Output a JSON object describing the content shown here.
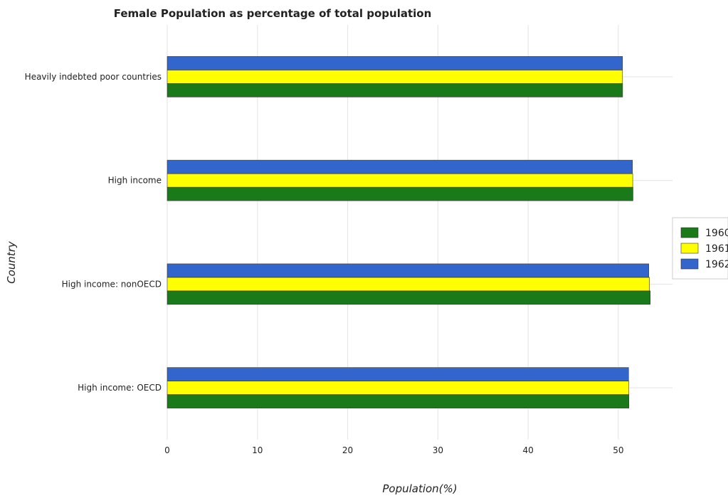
{
  "chart_data": {
    "type": "bar",
    "orientation": "horizontal",
    "title": "Female Population as percentage of total population",
    "xlabel": "Population(%)",
    "ylabel": "Country",
    "xlim": [
      0,
      56
    ],
    "xticks": [
      0,
      10,
      20,
      30,
      40,
      50
    ],
    "grid": true,
    "legend_position": "right",
    "categories": [
      "Heavily indebted poor countries",
      "High income",
      "High income: nonOECD",
      "High income: OECD"
    ],
    "series": [
      {
        "name": "1960",
        "color": "#1a7a1a",
        "values": [
          50.47,
          51.62,
          53.53,
          51.17
        ]
      },
      {
        "name": "1961",
        "color": "#ffff00",
        "values": [
          50.46,
          51.59,
          53.45,
          51.15
        ]
      },
      {
        "name": "1962",
        "color": "#3366cc",
        "values": [
          50.46,
          51.56,
          53.37,
          51.13
        ]
      }
    ]
  }
}
